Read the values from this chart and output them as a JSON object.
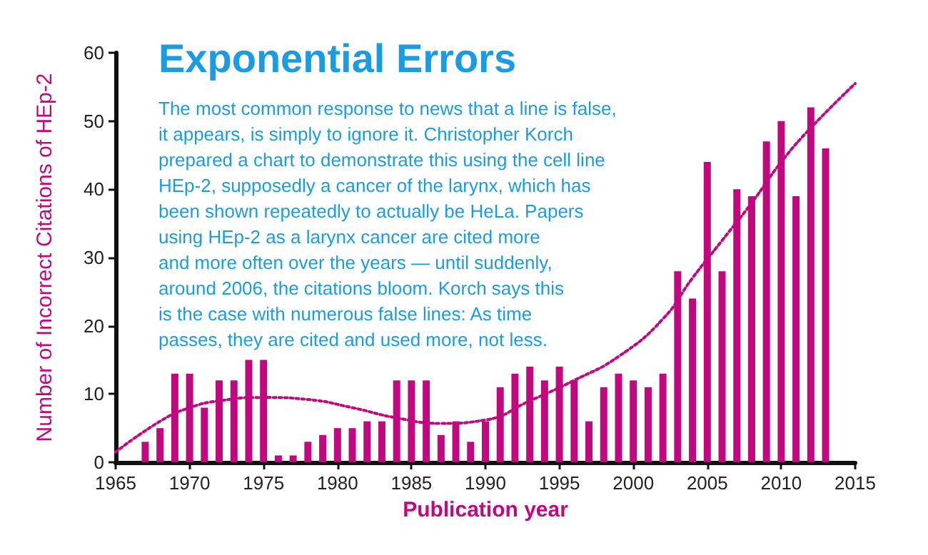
{
  "chart_data": {
    "type": "bar",
    "title": "Exponential Errors",
    "annotations": [
      "The most common response to news that a line is false,\nit appears, is simply to ignore it. Christopher Korch\nprepared a chart to demonstrate this using the cell line\nHEp-2, supposedly a cancer of the larynx, which has\nbeen shown repeatedly to actually be HeLa. Papers\nusing HEp-2 as a larynx cancer are cited more\nand more often over the years — until suddenly,\naround 2006, the citations bloom. Korch says this\nis the case with numerous false lines: As time\npasses, they are cited and used more, not less."
    ],
    "xlabel": "Publication year",
    "ylabel": "Number of Incorrect Citations of HEp-2",
    "x": [
      1967,
      1968,
      1969,
      1970,
      1971,
      1972,
      1973,
      1974,
      1975,
      1976,
      1977,
      1978,
      1979,
      1980,
      1981,
      1982,
      1983,
      1984,
      1985,
      1986,
      1987,
      1988,
      1989,
      1990,
      1991,
      1992,
      1993,
      1994,
      1995,
      1996,
      1997,
      1998,
      1999,
      2000,
      2001,
      2002,
      2003,
      2004,
      2005,
      2006,
      2007,
      2008,
      2009,
      2010,
      2011,
      2012,
      2013
    ],
    "series": [
      {
        "color": "#c0087f",
        "values": [
          3,
          5,
          13,
          13,
          8,
          12,
          12,
          15,
          15,
          1,
          1,
          3,
          4,
          5,
          5,
          6,
          6,
          12,
          12,
          12,
          4,
          6,
          3,
          6,
          11,
          13,
          14,
          12,
          14,
          12,
          6,
          11,
          13,
          12,
          11,
          13,
          28,
          24,
          44,
          28,
          40,
          39,
          47,
          50,
          39,
          52,
          46
        ]
      },
      {
        "type": "line",
        "color": "#c0087f",
        "line_style": "dotted",
        "marker": "none",
        "x": [
          1965,
          1968,
          1970,
          1972,
          1975,
          1978,
          1981,
          1984,
          1987,
          1990,
          1993,
          1996,
          1999,
          2002,
          2004,
          2006,
          2008,
          2010,
          2012,
          2015
        ],
        "values": [
          1.5,
          6,
          8,
          9,
          9.5,
          9.2,
          8,
          6.5,
          5.7,
          6.2,
          9,
          12,
          15.5,
          21,
          27,
          32.5,
          38,
          44,
          49,
          55.5
        ]
      }
    ],
    "xlim": [
      1965,
      2015
    ],
    "xticks": [
      1965,
      1970,
      1975,
      1980,
      1985,
      1990,
      1995,
      2000,
      2005,
      2010,
      2015
    ],
    "ylim": [
      0,
      60
    ],
    "yticks": [
      0,
      10,
      20,
      30,
      40,
      50,
      60
    ],
    "grid": false
  }
}
